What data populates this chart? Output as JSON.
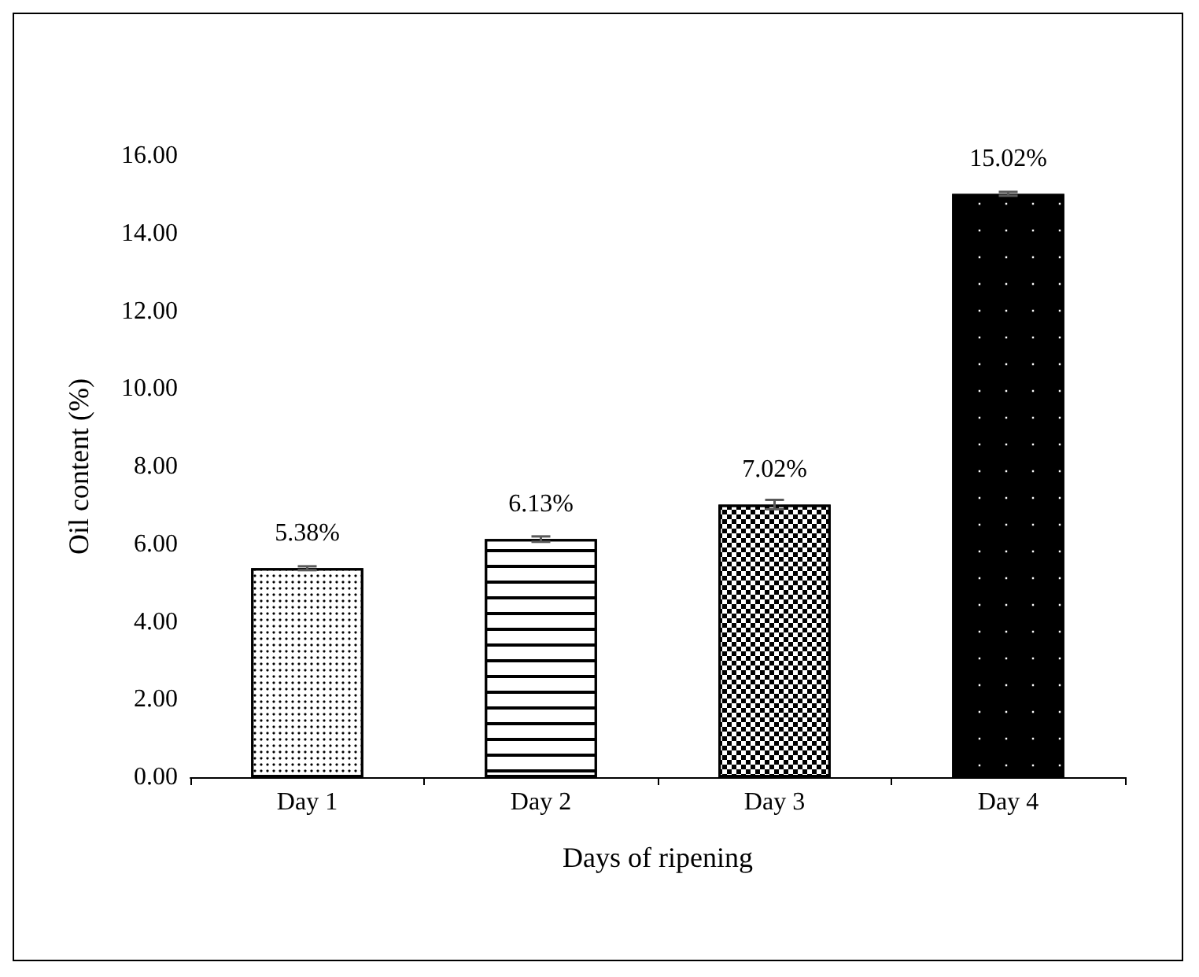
{
  "chart_data": {
    "type": "bar",
    "xlabel": "Days of ripening",
    "ylabel": "Oil content (%)",
    "categories": [
      "Day 1",
      "Day 2",
      "Day 3",
      "Day 4"
    ],
    "values": [
      5.38,
      6.13,
      7.02,
      15.02
    ],
    "errors": [
      0.05,
      0.07,
      0.12,
      0.05
    ],
    "value_labels": [
      "5.38%",
      "6.13%",
      "7.02%",
      "15.02%"
    ],
    "colors": [
      "#ffffff",
      "#ffffff",
      "#ffffff",
      "#000000"
    ],
    "ylim": [
      0,
      16
    ],
    "yticks": [
      {
        "value": 0,
        "label": "0.00"
      },
      {
        "value": 2,
        "label": "2.00"
      },
      {
        "value": 4,
        "label": "4.00"
      },
      {
        "value": 6,
        "label": "6.00"
      },
      {
        "value": 8,
        "label": "8.00"
      },
      {
        "value": 10,
        "label": "10.00"
      },
      {
        "value": 12,
        "label": "12.00"
      },
      {
        "value": 14,
        "label": "14.00"
      },
      {
        "value": 16,
        "label": "16.00"
      }
    ],
    "grid": false
  }
}
